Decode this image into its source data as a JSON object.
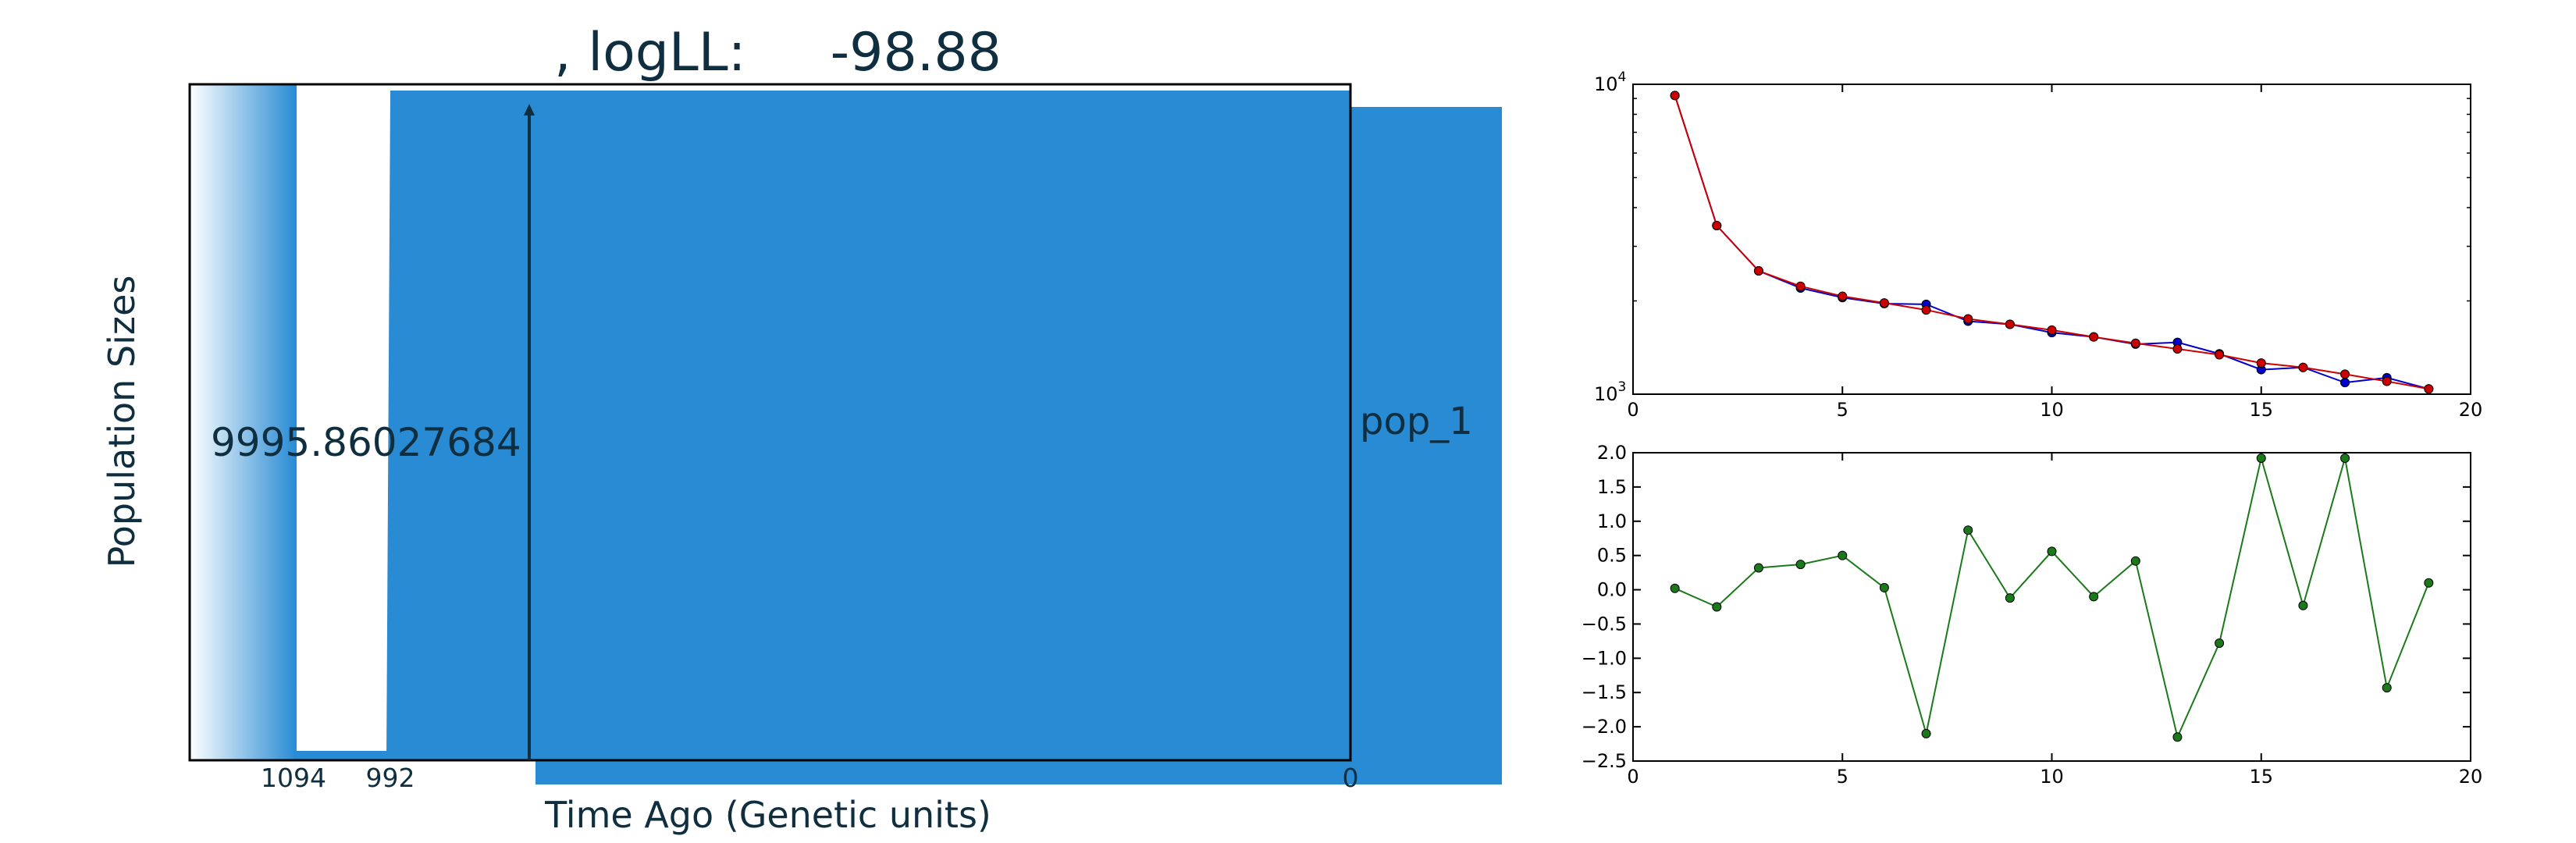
{
  "demography": {
    "title": ", logLL:     -98.88",
    "ylabel": "Population Sizes",
    "xlabel": "Time Ago (Genetic units)",
    "pop_size_label": "9995.86027684",
    "pop_label": "pop_1",
    "time_ticks": [
      "1094",
      "992",
      "0"
    ],
    "color": "#288BD4",
    "chart_data": {
      "type": "area",
      "time_ticks": [
        1094,
        992,
        0
      ],
      "population": "pop_1",
      "population_size": 9995.86027684,
      "log_likelihood": -98.88
    }
  },
  "sfs_chart": {
    "chart_data": {
      "type": "line",
      "yscale": "log",
      "xlim": [
        0,
        20
      ],
      "ylim": [
        1000,
        10000
      ],
      "xticks": [
        "0",
        "5",
        "10",
        "15",
        "20"
      ],
      "yticks": [
        "10^3",
        "10^4"
      ],
      "x": [
        1,
        2,
        3,
        4,
        5,
        6,
        7,
        8,
        9,
        10,
        11,
        12,
        13,
        14,
        15,
        16,
        17,
        18,
        19
      ],
      "series": [
        {
          "color": "#0000cc",
          "values": [
            9200,
            3500,
            2500,
            2200,
            2050,
            1960,
            1950,
            1720,
            1680,
            1580,
            1530,
            1450,
            1470,
            1350,
            1200,
            1220,
            1090,
            1130,
            1040
          ]
        },
        {
          "color": "#cc0000",
          "values": [
            9200,
            3500,
            2500,
            2230,
            2070,
            1970,
            1870,
            1750,
            1680,
            1610,
            1530,
            1460,
            1400,
            1340,
            1260,
            1220,
            1160,
            1100,
            1040
          ]
        }
      ],
      "grid": false
    }
  },
  "residual_chart": {
    "chart_data": {
      "type": "line",
      "xlim": [
        0,
        20
      ],
      "ylim": [
        -2.5,
        2.0
      ],
      "xticks": [
        "0",
        "5",
        "10",
        "15",
        "20"
      ],
      "yticks": [
        "2.0",
        "1.5",
        "1.0",
        "0.5",
        "0.0",
        "−0.5",
        "−1.0",
        "−1.5",
        "−2.0",
        "−2.5"
      ],
      "x": [
        1,
        2,
        3,
        4,
        5,
        6,
        7,
        8,
        9,
        10,
        11,
        12,
        13,
        14,
        15,
        16,
        17,
        18,
        19
      ],
      "series": [
        {
          "color": "#1a7a1a",
          "values": [
            0.02,
            -0.25,
            0.32,
            0.37,
            0.5,
            0.03,
            -2.1,
            0.87,
            -0.12,
            0.56,
            -0.1,
            0.42,
            -2.15,
            -0.78,
            1.92,
            -0.23,
            1.92,
            -1.43,
            0.1
          ]
        }
      ],
      "grid": false
    }
  }
}
